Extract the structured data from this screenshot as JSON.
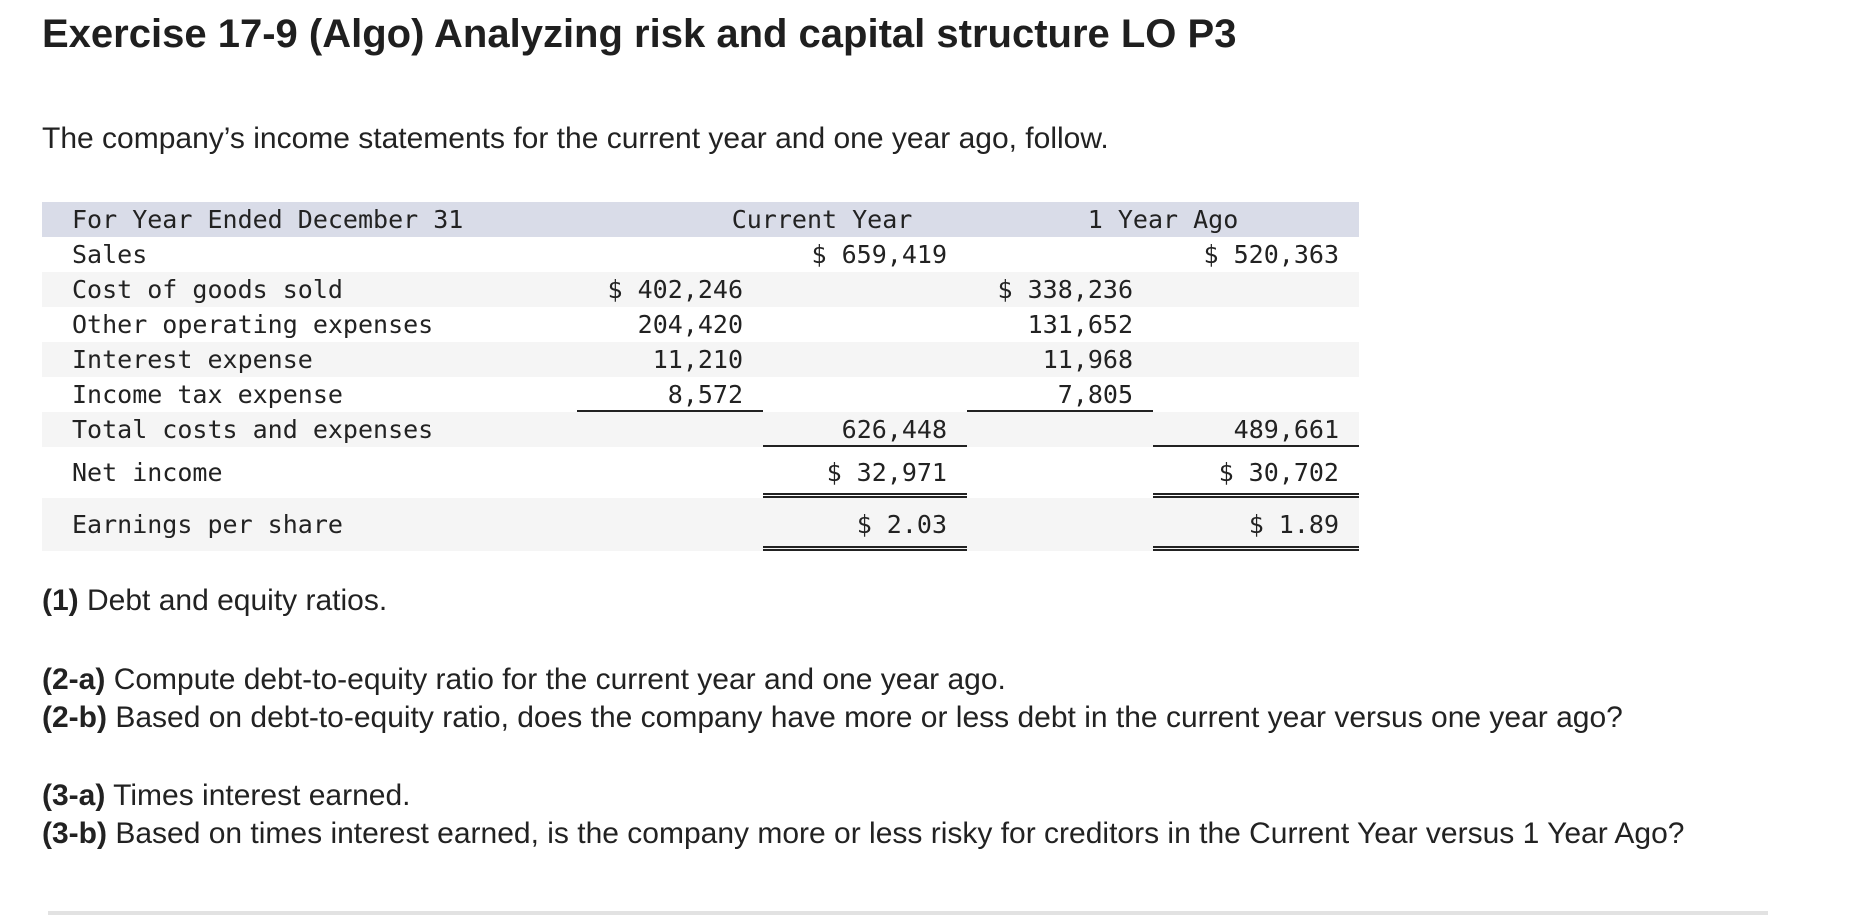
{
  "title": "Exercise 17-9 (Algo) Analyzing risk and capital structure LO P3",
  "intro": "The company’s income statements for the current year and one year ago, follow.",
  "statement": {
    "header": {
      "label": "For Year Ended December 31",
      "current": "Current Year",
      "prior": "1 Year Ago"
    },
    "sales": {
      "label": "Sales",
      "current_total": "$ 659,419",
      "prior_total": "$ 520,363"
    },
    "cogs": {
      "label": "Cost of goods sold",
      "current": "$ 402,246",
      "prior": "$ 338,236"
    },
    "other_opex": {
      "label": "Other operating expenses",
      "current": "204,420",
      "prior": "131,652"
    },
    "interest": {
      "label": "Interest expense",
      "current": "11,210",
      "prior": "11,968"
    },
    "tax": {
      "label": "Income tax expense",
      "current": "8,572",
      "prior": "7,805"
    },
    "total_costs": {
      "label": "Total costs and expenses",
      "current_total": "626,448",
      "prior_total": "489,661"
    },
    "net_income": {
      "label": "Net income",
      "current_total": "$ 32,971",
      "prior_total": "$ 30,702"
    },
    "eps": {
      "label": "Earnings per share",
      "current_total": "$ 2.03",
      "prior_total": "$ 1.89"
    }
  },
  "questions": {
    "q1": {
      "tag": "(1)",
      "text": "Debt and equity ratios."
    },
    "q2a": {
      "tag": "(2-a)",
      "text": "Compute debt-to-equity ratio for the current year and one year ago."
    },
    "q2b": {
      "tag": "(2-b)",
      "text": "Based on debt-to-equity ratio, does the company have more or less debt in the current year versus one year ago?"
    },
    "q3a": {
      "tag": "(3-a)",
      "text": "Times interest earned."
    },
    "q3b": {
      "tag": "(3-b)",
      "text": "Based on times interest earned, is the company more or less risky for creditors in the Current Year versus 1 Year Ago?"
    }
  }
}
